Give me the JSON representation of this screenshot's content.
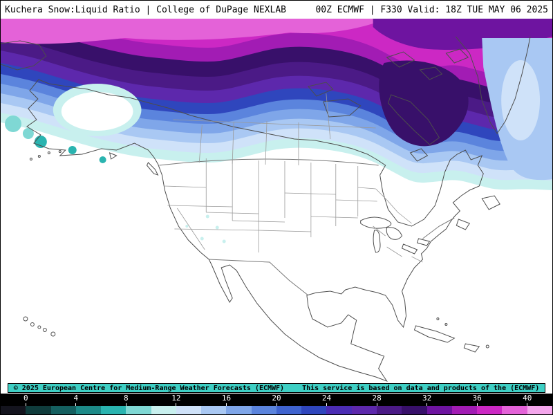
{
  "header": {
    "title_left": "Kuchera Snow:Liquid Ratio | College of DuPage NEXLAB",
    "title_right": "00Z ECMWF | F330 Valid: 18Z TUE MAY 06 2025"
  },
  "attribution": {
    "text_left": "© 2025 European Centre for Medium-Range Weather Forecasts (ECMWF)",
    "text_right": "This service is based on data and products of the (ECMWF)",
    "highlight_color": "#3ecfc4"
  },
  "chart_data": {
    "type": "heatmap",
    "title": "Kuchera Snow:Liquid Ratio",
    "provider": "College of DuPage NEXLAB",
    "model_run": "00Z ECMWF",
    "forecast_hour": "F330",
    "valid_time": "18Z TUE MAY 06 2025",
    "colorbar": {
      "ticks": [
        0,
        4,
        8,
        12,
        16,
        20,
        24,
        28,
        32,
        36,
        40
      ],
      "stops": [
        {
          "from": -2,
          "to": 0,
          "color": "#14141e"
        },
        {
          "from": 0,
          "to": 2,
          "color": "#103c3c"
        },
        {
          "from": 2,
          "to": 4,
          "color": "#156060"
        },
        {
          "from": 4,
          "to": 6,
          "color": "#1d8a88"
        },
        {
          "from": 6,
          "to": 8,
          "color": "#2ab4b0"
        },
        {
          "from": 8,
          "to": 10,
          "color": "#7fd8d4"
        },
        {
          "from": 10,
          "to": 12,
          "color": "#c8f0ee"
        },
        {
          "from": 12,
          "to": 14,
          "color": "#cfe2f9"
        },
        {
          "from": 14,
          "to": 16,
          "color": "#a9c8f3"
        },
        {
          "from": 16,
          "to": 18,
          "color": "#7fa6e9"
        },
        {
          "from": 18,
          "to": 20,
          "color": "#5b84dd"
        },
        {
          "from": 20,
          "to": 22,
          "color": "#3f63cf"
        },
        {
          "from": 22,
          "to": 24,
          "color": "#2f46bd"
        },
        {
          "from": 24,
          "to": 26,
          "color": "#4b2cb4"
        },
        {
          "from": 26,
          "to": 28,
          "color": "#5d28ac"
        },
        {
          "from": 28,
          "to": 30,
          "color": "#4b1a86"
        },
        {
          "from": 30,
          "to": 32,
          "color": "#38106a"
        },
        {
          "from": 32,
          "to": 34,
          "color": "#6e14a0"
        },
        {
          "from": 34,
          "to": 36,
          "color": "#a21cb4"
        },
        {
          "from": 36,
          "to": 38,
          "color": "#cc28c4"
        },
        {
          "from": 38,
          "to": 40,
          "color": "#e462d8"
        },
        {
          "from": 40,
          "to": 42,
          "color": "#f4a6ec"
        }
      ]
    }
  }
}
